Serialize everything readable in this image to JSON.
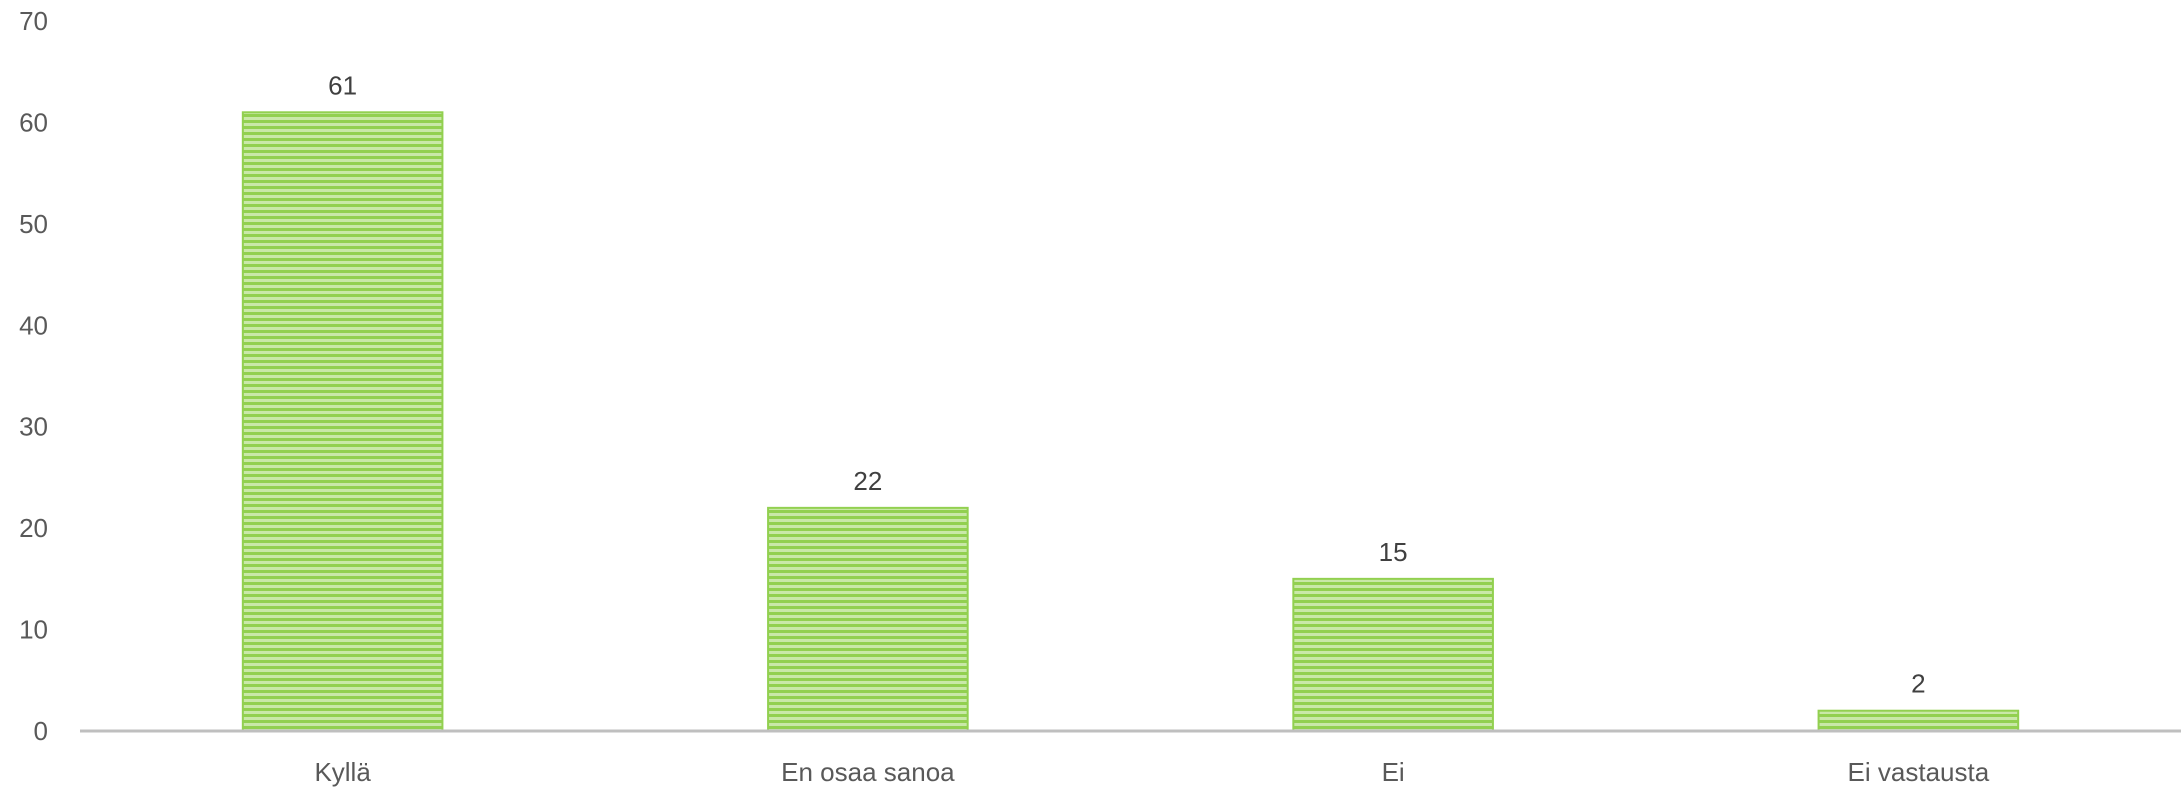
{
  "chart_data": {
    "type": "bar",
    "title": "",
    "xlabel": "",
    "ylabel": "",
    "categories": [
      "Kyllä",
      "En osaa sanoa",
      "Ei",
      "Ei vastausta"
    ],
    "values": [
      61,
      22,
      15,
      2
    ],
    "data_labels": [
      "61",
      "22",
      "15",
      "2"
    ],
    "ylim": [
      0,
      70
    ],
    "yticks": [
      0,
      10,
      20,
      30,
      40,
      50,
      60,
      70
    ],
    "ytick_labels": [
      "0",
      "10",
      "20",
      "30",
      "40",
      "50",
      "60",
      "70"
    ],
    "grid": false,
    "legend": "none",
    "colors": {
      "bar": "#92d050",
      "bar_stripe": "#c9e8a8",
      "axis": "#bfbfbf"
    }
  }
}
